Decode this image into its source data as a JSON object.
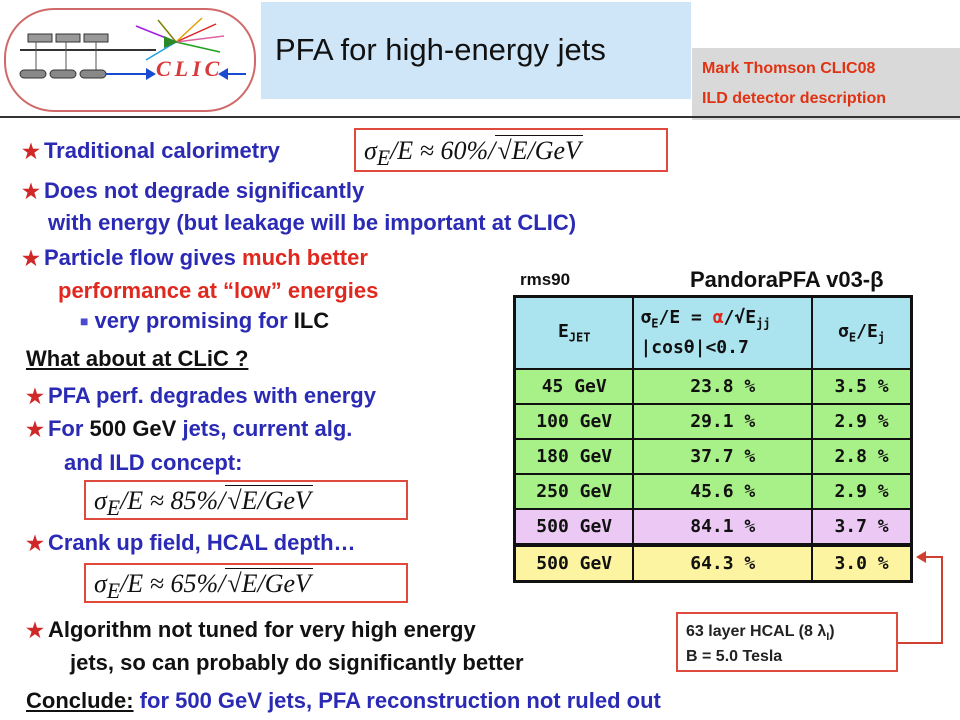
{
  "logo": {
    "text": "CLIC"
  },
  "header": {
    "title": "PFA for high-energy jets",
    "author": "Mark Thomson CLIC08",
    "subtitle": "ILD detector description"
  },
  "bullets": {
    "b1": "Traditional calorimetry",
    "b2a": "Does not degrade significantly",
    "b2b": "with energy   (but leakage will be important at CLIC)",
    "b3a_1": "Particle flow gives ",
    "b3a_2": "much better",
    "b3b": "performance at “low” energies",
    "b3c_1": "very promising for ",
    "b3c_2": "ILC",
    "heading": "What about at CLiC ?",
    "b4": "PFA perf. degrades with energy",
    "b5_1": "For ",
    "b5_2": "500 GeV",
    "b5_3": " jets, current alg.",
    "b5b": "and ILD concept:",
    "b6": "Crank up field, HCAL depth…",
    "b7a": "Algorithm not tuned for very high energy",
    "b7b": "jets, so can probably do significantly better",
    "conclude_label": "Conclude:",
    "conclude_text": " for 500 GeV jets, PFA reconstruction not ruled out"
  },
  "formulas": {
    "f1_pre": "σ",
    "f1_sub": "E",
    "f1_mid": "/E ≈ 60%/",
    "f1_rad": "E/GeV",
    "f2_mid": "/E ≈ 85%/",
    "f2_rad": "E/GeV",
    "f3_mid": "/E ≈ 65%/",
    "f3_rad": "E/GeV"
  },
  "table": {
    "label_left": "rms90",
    "label_right": "PandoraPFA v03-β",
    "headers": {
      "c1": "E",
      "c1_sub": "JET",
      "c2_line1_pre": "σ",
      "c2_line1_sub": "E",
      "c2_line1_mid": "/E = ",
      "c2_line1_alpha": "α",
      "c2_line1_post": "/√E",
      "c2_line1_post_sub": "jj",
      "c2_line2": "|cosθ|<0.7",
      "c3_pre": "σ",
      "c3_sub": "E",
      "c3_post": "/E",
      "c3_post_sub": "j"
    },
    "rows": [
      {
        "e": "45 GeV",
        "a": "23.8 %",
        "b": "3.5 %"
      },
      {
        "e": "100 GeV",
        "a": "29.1 %",
        "b": "2.9 %"
      },
      {
        "e": "180 GeV",
        "a": "37.7 %",
        "b": "2.8 %"
      },
      {
        "e": "250 GeV",
        "a": "45.6 %",
        "b": "2.9 %"
      },
      {
        "e": "500 GeV",
        "a": "84.1 %",
        "b": "3.7 %"
      },
      {
        "e": "500 GeV",
        "a": "64.3 %",
        "b": "3.0 %"
      }
    ]
  },
  "callout": {
    "line1_pre": "63 layer HCAL (8 ",
    "line1_lambda": "λ",
    "line1_sub": "I",
    "line1_post": ")",
    "line2": "B = 5.0 Tesla"
  },
  "colors": {
    "accent_red": "#e0281e",
    "text_blue": "#2a2ab4",
    "title_bg": "#cfe6f8",
    "row_green": "#a8f088",
    "row_purple": "#ecc8f4",
    "row_yellow": "#fcf4a0"
  }
}
